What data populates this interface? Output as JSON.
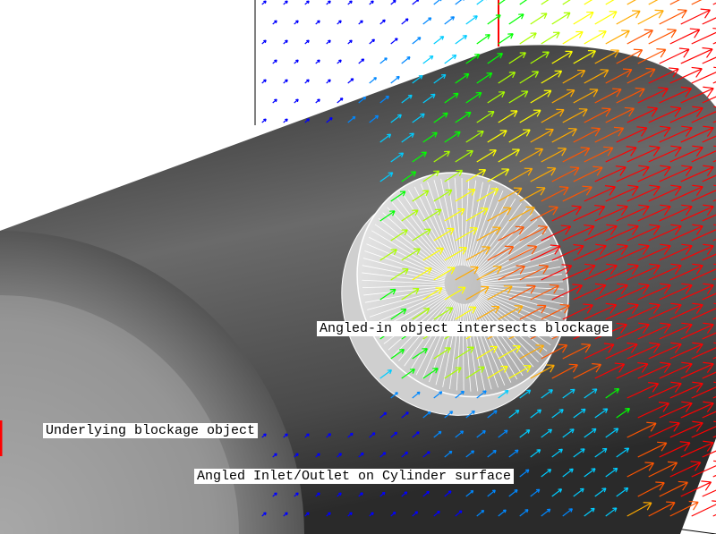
{
  "labels": {
    "intersect": "Angled-in object intersects blockage",
    "underlying": "Underlying blockage object",
    "inlet": "Angled Inlet/Outlet on Cylinder surface"
  },
  "colors": {
    "background": "#ffffff",
    "cylinder": "#3a3a3a",
    "disc": "#e8e8e8",
    "axis_line": "#000000",
    "axis_red": "#ff0000",
    "vector_palette": [
      "#0000ff",
      "#0088ff",
      "#00ccff",
      "#00ff00",
      "#aaff00",
      "#ffff00",
      "#ffaa00",
      "#ff5500",
      "#ff0000"
    ]
  }
}
